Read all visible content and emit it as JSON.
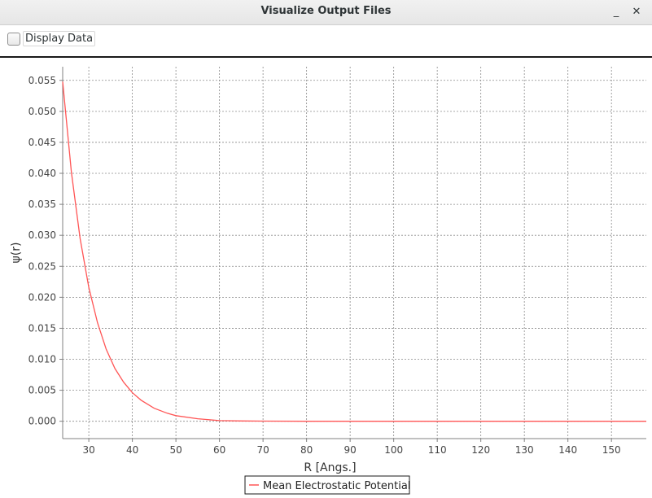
{
  "window": {
    "title": "Visualize Output Files",
    "minimize_glyph": "_",
    "close_glyph": "✕"
  },
  "toolbar": {
    "display_data_label": "Display Data",
    "display_data_checked": false
  },
  "chart_data": {
    "type": "line",
    "title": "",
    "xlabel": "R [Angs.]",
    "ylabel": "ψ(r)",
    "xlim": [
      24,
      158
    ],
    "ylim": [
      -0.0028,
      0.0572
    ],
    "xticks": [
      30,
      40,
      50,
      60,
      70,
      80,
      90,
      100,
      110,
      120,
      130,
      140,
      150
    ],
    "yticks": [
      "0.000",
      "0.005",
      "0.010",
      "0.015",
      "0.020",
      "0.025",
      "0.030",
      "0.035",
      "0.040",
      "0.045",
      "0.050",
      "0.055"
    ],
    "grid": true,
    "legend_position": "bottom-center",
    "series": [
      {
        "name": "Mean Electrostatic Potential",
        "color": "#ff5555",
        "x": [
          24,
          26,
          28,
          30,
          32,
          34,
          36,
          38,
          40,
          42,
          45,
          48,
          50,
          55,
          60,
          65,
          70,
          80,
          90,
          100,
          110,
          120,
          130,
          140,
          150,
          158
        ],
        "y": [
          0.0548,
          0.0402,
          0.0295,
          0.0216,
          0.0159,
          0.0116,
          0.0085,
          0.0063,
          0.0046,
          0.0034,
          0.0021,
          0.0013,
          0.0009,
          0.0004,
          0.0001,
          5e-05,
          2e-05,
          0,
          0,
          0,
          0,
          0,
          0,
          0,
          0,
          0
        ]
      }
    ]
  }
}
